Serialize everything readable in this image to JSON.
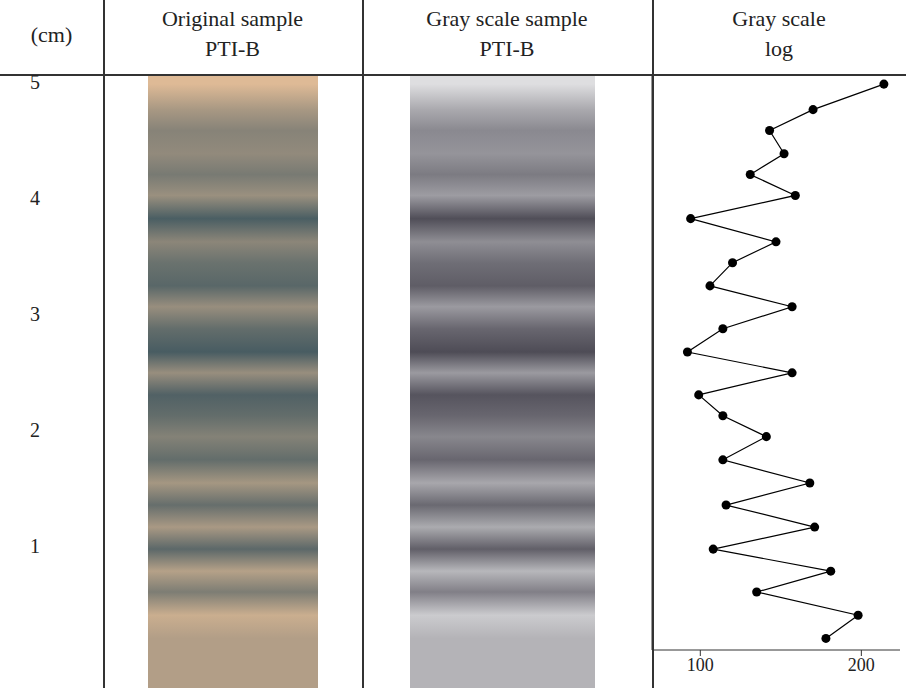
{
  "columns": [
    {
      "title": "(cm)"
    },
    {
      "title": "Original sample",
      "subtitle": "PTI-B"
    },
    {
      "title": "Gray scale sample",
      "subtitle": "PTI-B"
    },
    {
      "title": "Gray scale",
      "subtitle": "log"
    }
  ],
  "chart_data": {
    "type": "line",
    "x": [
      214,
      170,
      143,
      152,
      131,
      159,
      94,
      147,
      120,
      106,
      157,
      114,
      92,
      157,
      99,
      114,
      141,
      114,
      168,
      116,
      171,
      108,
      181,
      135,
      198,
      178
    ],
    "y": [
      4.98,
      4.76,
      4.58,
      4.38,
      4.2,
      4.02,
      3.82,
      3.62,
      3.44,
      3.24,
      3.06,
      2.87,
      2.67,
      2.49,
      2.3,
      2.12,
      1.94,
      1.74,
      1.54,
      1.35,
      1.16,
      0.97,
      0.78,
      0.6,
      0.4,
      0.2
    ],
    "xlim": [
      70,
      224
    ],
    "xticks": [
      100,
      200
    ],
    "ylim": [
      0.1,
      5.05
    ],
    "yticks": [
      1,
      2,
      3,
      4,
      5
    ],
    "color": "#000000",
    "marker": "circle",
    "line_style": "solid",
    "grid": false
  }
}
